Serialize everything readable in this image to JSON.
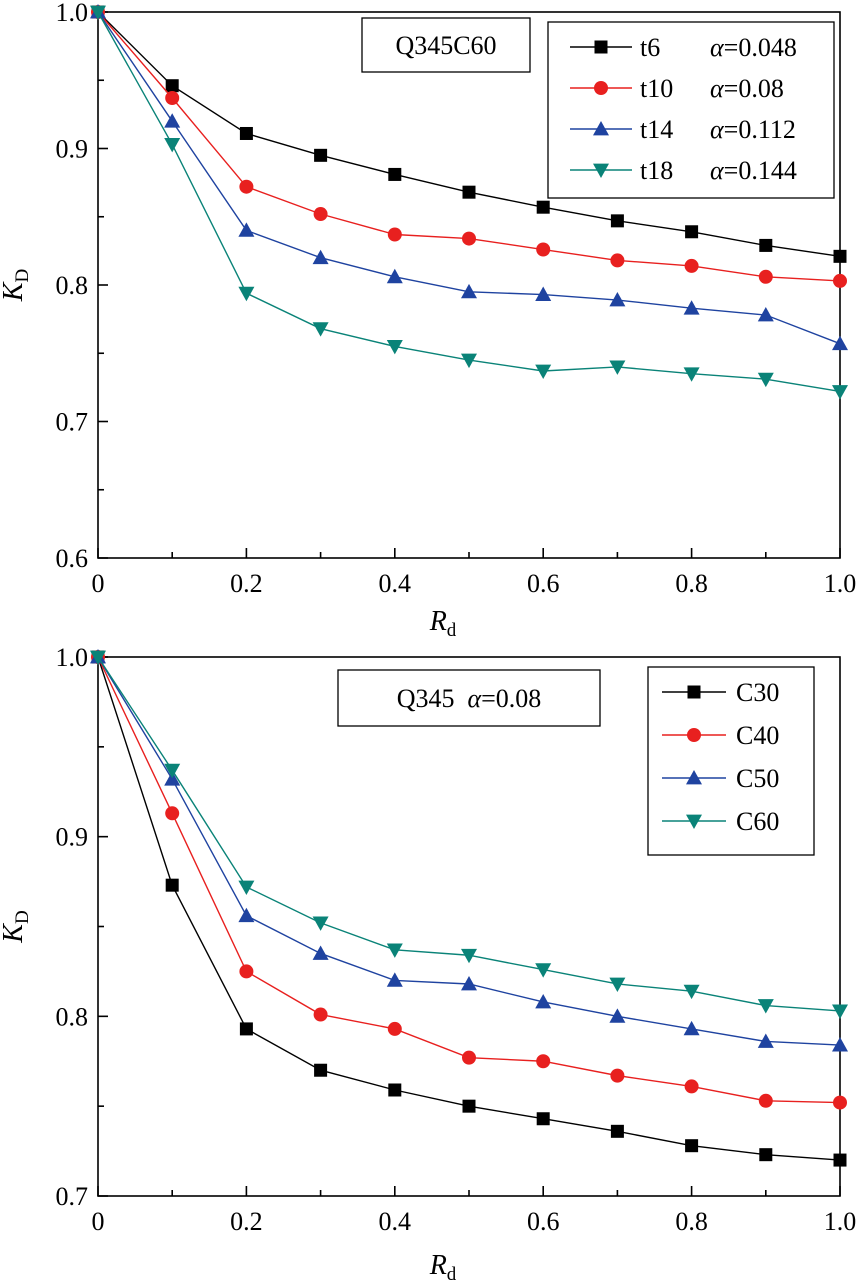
{
  "chart_data": [
    {
      "type": "line",
      "annotation": "Q345C60",
      "xlabel": "R",
      "xlabel_sub": "d",
      "ylabel": "K",
      "ylabel_sub": "D",
      "xlim": [
        0,
        1.0
      ],
      "ylim": [
        0.6,
        1.0
      ],
      "xticks": [
        "0",
        "0.2",
        "0.4",
        "0.6",
        "0.8",
        "1.0"
      ],
      "yticks": [
        "0.6",
        "0.7",
        "0.8",
        "0.9",
        "1.0"
      ],
      "legend_position": "top-right",
      "x": [
        0,
        0.1,
        0.2,
        0.3,
        0.4,
        0.5,
        0.6,
        0.7,
        0.8,
        0.9,
        1.0
      ],
      "series": [
        {
          "name": "t6",
          "name_extra": "α=0.048",
          "color": "#000000",
          "marker": "square",
          "values": [
            1.0,
            0.946,
            0.911,
            0.895,
            0.881,
            0.868,
            0.857,
            0.847,
            0.839,
            0.829,
            0.821
          ]
        },
        {
          "name": "t10",
          "name_extra": "α=0.08",
          "color": "#e8201f",
          "marker": "circle",
          "values": [
            1.0,
            0.937,
            0.872,
            0.852,
            0.837,
            0.834,
            0.826,
            0.818,
            0.814,
            0.806,
            0.803
          ]
        },
        {
          "name": "t14",
          "name_extra": "α=0.112",
          "color": "#1f43a0",
          "marker": "triangle-up",
          "values": [
            1.0,
            0.92,
            0.84,
            0.82,
            0.806,
            0.795,
            0.793,
            0.789,
            0.783,
            0.778,
            0.757
          ]
        },
        {
          "name": "t18",
          "name_extra": "α=0.144",
          "color": "#0a8378",
          "marker": "triangle-down",
          "values": [
            1.0,
            0.903,
            0.794,
            0.768,
            0.755,
            0.745,
            0.737,
            0.74,
            0.735,
            0.731,
            0.722
          ]
        }
      ]
    },
    {
      "type": "line",
      "annotation": "Q345  α=0.08",
      "xlabel": "R",
      "xlabel_sub": "d",
      "ylabel": "K",
      "ylabel_sub": "D",
      "xlim": [
        0,
        1.0
      ],
      "ylim": [
        0.7,
        1.0
      ],
      "xticks": [
        "0",
        "0.2",
        "0.4",
        "0.6",
        "0.8",
        "1.0"
      ],
      "yticks": [
        "0.7",
        "0.8",
        "0.9",
        "1.0"
      ],
      "legend_position": "top-right",
      "x": [
        0,
        0.1,
        0.2,
        0.3,
        0.4,
        0.5,
        0.6,
        0.7,
        0.8,
        0.9,
        1.0
      ],
      "series": [
        {
          "name": "C30",
          "color": "#000000",
          "marker": "square",
          "values": [
            1.0,
            0.873,
            0.793,
            0.77,
            0.759,
            0.75,
            0.743,
            0.736,
            0.728,
            0.723,
            0.72
          ]
        },
        {
          "name": "C40",
          "color": "#e8201f",
          "marker": "circle",
          "values": [
            1.0,
            0.913,
            0.825,
            0.801,
            0.793,
            0.777,
            0.775,
            0.767,
            0.761,
            0.753,
            0.752
          ]
        },
        {
          "name": "C50",
          "color": "#1f43a0",
          "marker": "triangle-up",
          "values": [
            1.0,
            0.932,
            0.856,
            0.835,
            0.82,
            0.818,
            0.808,
            0.8,
            0.793,
            0.786,
            0.784
          ]
        },
        {
          "name": "C60",
          "color": "#0a8378",
          "marker": "triangle-down",
          "values": [
            1.0,
            0.937,
            0.872,
            0.852,
            0.837,
            0.834,
            0.826,
            0.818,
            0.814,
            0.806,
            0.803
          ]
        }
      ]
    }
  ]
}
